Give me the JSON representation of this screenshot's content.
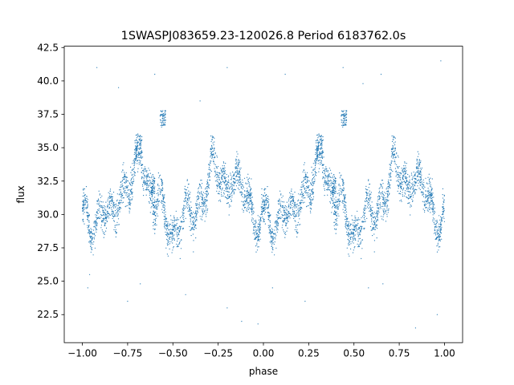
{
  "chart_data": {
    "type": "scatter",
    "title": "1SWASPJ083659.23-120026.8 Period 6183762.0s",
    "xlabel": "phase",
    "ylabel": "flux",
    "xlim": [
      -1.1,
      1.1
    ],
    "ylim": [
      20.4,
      42.6
    ],
    "xticks": [
      -1.0,
      -0.75,
      -0.5,
      -0.25,
      0.0,
      0.25,
      0.5,
      0.75,
      1.0
    ],
    "xtick_labels": [
      "−1.00",
      "−0.75",
      "−0.50",
      "−0.25",
      "0.00",
      "0.25",
      "0.50",
      "0.75",
      "1.00"
    ],
    "yticks": [
      22.5,
      25.0,
      27.5,
      30.0,
      32.5,
      35.0,
      37.5,
      40.0,
      42.5
    ],
    "ytick_labels": [
      "22.5",
      "25.0",
      "27.5",
      "30.0",
      "32.5",
      "35.0",
      "37.5",
      "40.0",
      "42.5"
    ],
    "grid": false,
    "marker_color": "#1f77b4",
    "series": [
      {
        "phase_profile": {
          "x": [
            0.0,
            0.02,
            0.05,
            0.08,
            0.1,
            0.12,
            0.15,
            0.18,
            0.2,
            0.22,
            0.24,
            0.26,
            0.28,
            0.3,
            0.32,
            0.34,
            0.36,
            0.38,
            0.4,
            0.42,
            0.45,
            0.48,
            0.5,
            0.52,
            0.54,
            0.56,
            0.58,
            0.6,
            0.62,
            0.65,
            0.68,
            0.7,
            0.72,
            0.75,
            0.78,
            0.8,
            0.82,
            0.85,
            0.88,
            0.9,
            0.92,
            0.95,
            0.98,
            1.0
          ],
          "y": [
            30.5,
            29.5,
            28.3,
            29.0,
            30.5,
            31.5,
            30.5,
            30.0,
            30.5,
            30.8,
            31.5,
            32.5,
            33.5,
            34.5,
            35.5,
            33.5,
            31.0,
            30.5,
            30.3,
            31.5,
            31.0,
            29.5,
            28.0,
            28.5,
            29.0,
            29.5,
            30.0,
            30.5,
            30.5,
            31.0,
            31.5,
            32.5,
            33.5,
            33.0,
            32.5,
            32.0,
            33.5,
            32.5,
            32.0,
            31.0,
            30.5,
            30.0,
            29.5,
            30.5
          ]
        },
        "flare_segments": [
          {
            "x": [
              0.43,
              0.46
            ],
            "y": [
              36.5,
              37.8
            ]
          },
          {
            "x": [
              0.29,
              0.33
            ],
            "y": [
              34.0,
              36.0
            ]
          },
          {
            "x": [
              0.38,
              0.4
            ],
            "y": [
              31.5,
              33.0
            ]
          }
        ],
        "outliers": [
          {
            "x": -0.97,
            "y": 24.5
          },
          {
            "x": -0.96,
            "y": 25.5
          },
          {
            "x": -0.68,
            "y": 24.8
          },
          {
            "x": -0.75,
            "y": 23.5
          },
          {
            "x": -0.43,
            "y": 24.0
          },
          {
            "x": -0.2,
            "y": 23.0
          },
          {
            "x": -0.12,
            "y": 22.0
          },
          {
            "x": -0.03,
            "y": 21.8
          },
          {
            "x": 0.05,
            "y": 24.5
          },
          {
            "x": 0.23,
            "y": 23.5
          },
          {
            "x": 0.58,
            "y": 24.5
          },
          {
            "x": 0.66,
            "y": 24.8
          },
          {
            "x": 0.84,
            "y": 21.5
          },
          {
            "x": 0.96,
            "y": 22.5
          },
          {
            "x": -0.92,
            "y": 41.0
          },
          {
            "x": -0.6,
            "y": 40.5
          },
          {
            "x": -0.2,
            "y": 41.0
          },
          {
            "x": 0.12,
            "y": 40.5
          },
          {
            "x": 0.44,
            "y": 41.0
          },
          {
            "x": 0.65,
            "y": 40.5
          },
          {
            "x": 0.98,
            "y": 41.5
          },
          {
            "x": -0.8,
            "y": 39.5
          },
          {
            "x": 0.55,
            "y": 39.8
          },
          {
            "x": -0.35,
            "y": 38.5
          }
        ]
      }
    ]
  }
}
